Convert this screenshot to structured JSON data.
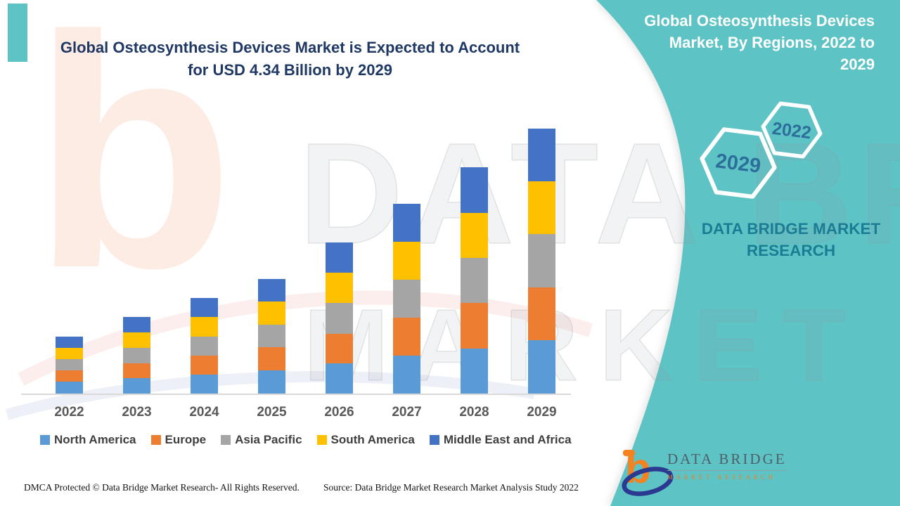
{
  "colors": {
    "teal_panel": "#5EC3C5",
    "title_navy": "#1F3864",
    "hexagon_outline": "#FFFFFF",
    "hexagon_label": "#2D6F9B",
    "panel_brand_teal": "#1B7C93",
    "axis_line": "#D9D9D9",
    "axis_label": "#595959",
    "legend_label": "#3F3F3F",
    "logo_orange": "#F58220",
    "logo_navy": "#2B3990"
  },
  "header": {
    "title_line1": "Global Osteosynthesis Devices Market is Expected to Account",
    "title_line2": "for USD 4.34 Billion by 2029"
  },
  "panel": {
    "title_line1": "Global Osteosynthesis Devices",
    "title_line2": "Market, By Regions, 2022 to",
    "title_line3": "2029",
    "hexagon_small_label": "2022",
    "hexagon_large_label": "2029",
    "brand_line1": "DATA BRIDGE MARKET",
    "brand_line2": "RESEARCH"
  },
  "chart_data": {
    "type": "bar",
    "stacked": true,
    "unit": "USD Billion",
    "title": "Global Osteosynthesis Devices Market is Expected to Account for USD 4.34 Billion by 2029",
    "categories": [
      "2022",
      "2023",
      "2024",
      "2025",
      "2026",
      "2027",
      "2028",
      "2029"
    ],
    "series": [
      {
        "name": "North America",
        "color": "#5B9BD5",
        "values": [
          0.19,
          0.25,
          0.31,
          0.38,
          0.49,
          0.62,
          0.74,
          0.87
        ]
      },
      {
        "name": "Europe",
        "color": "#ED7D31",
        "values": [
          0.19,
          0.25,
          0.31,
          0.38,
          0.49,
          0.62,
          0.74,
          0.87
        ]
      },
      {
        "name": "Asia Pacific",
        "color": "#A5A5A5",
        "values": [
          0.18,
          0.25,
          0.31,
          0.37,
          0.5,
          0.62,
          0.74,
          0.87
        ]
      },
      {
        "name": "South America",
        "color": "#FFC000",
        "values": [
          0.19,
          0.25,
          0.32,
          0.38,
          0.5,
          0.62,
          0.74,
          0.87
        ]
      },
      {
        "name": "Middle East and Africa",
        "color": "#4472C4",
        "values": [
          0.18,
          0.25,
          0.31,
          0.37,
          0.49,
          0.63,
          0.75,
          0.86
        ]
      }
    ],
    "totals_usd_billion": [
      0.93,
      1.25,
      1.56,
      1.88,
      2.47,
      3.11,
      3.71,
      4.34
    ],
    "xlabel": "",
    "ylabel": "",
    "ylim": [
      0,
      4.5
    ],
    "gridlines": false,
    "y_axis_shown": false,
    "legend_position": "bottom"
  },
  "watermark": {
    "letter_b": "b",
    "row1": "DATA BRIDGE",
    "row2": "MARKET RESEARCH"
  },
  "footer": {
    "dmca": "DMCA Protected © Data Bridge Market Research- All Rights Reserved.",
    "source": "Source: Data Bridge Market Research Market Analysis Study 2022",
    "logo_b": "b",
    "logo_text": "DATA BRIDGE",
    "logo_subtext": "MARKET RESEARCH"
  }
}
